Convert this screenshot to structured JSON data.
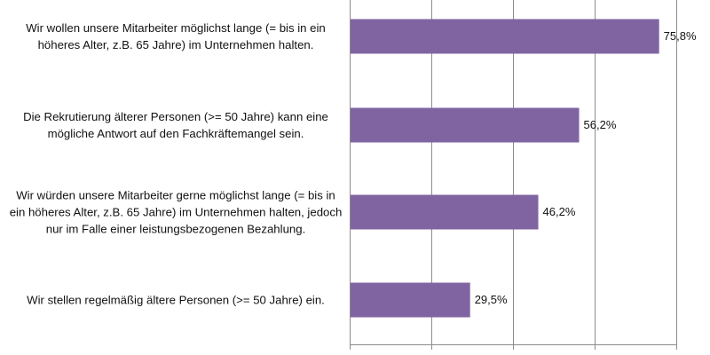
{
  "chart_data": {
    "type": "bar",
    "orientation": "horizontal",
    "categories": [
      "Wir wollen unsere Mitarbeiter möglichst lange (= bis in ein höheres Alter, z.B. 65 Jahre) im Unternehmen halten.",
      "Die Rekrutierung älterer Personen (>= 50 Jahre) kann eine mögliche Antwort auf den Fachkräftemangel sein.",
      "Wir würden unsere Mitarbeiter gerne möglichst lange (= bis in ein höheres Alter, z.B. 65 Jahre) im Unternehmen halten, jedoch nur im Falle einer leistungsbezogenen Bezahlung.",
      "Wir stellen regelmäßig ältere Personen (>= 50 Jahre) ein."
    ],
    "values": [
      75.8,
      56.2,
      46.2,
      29.5
    ],
    "value_labels": [
      "75,8%",
      "56,2%",
      "46,2%",
      "29,5%"
    ],
    "title": "",
    "xlabel": "",
    "ylabel": "",
    "xlim": [
      0,
      80
    ],
    "grid_step": 20,
    "grid": true,
    "bar_color": "#8064a2",
    "grid_color": "#8c8c8c"
  }
}
